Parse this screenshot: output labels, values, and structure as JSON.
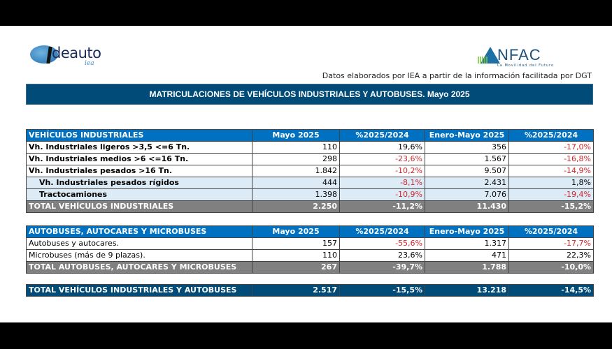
{
  "logos": {
    "left": {
      "name": "Ideauto",
      "word": "deauto",
      "sub": "iea"
    },
    "right": {
      "name": "ANFAC",
      "word": "NFAC",
      "tagline": "La Movilidad del Futuro"
    }
  },
  "source_note": "Datos elaborados por IEA a partir de la información facilitada por DGT",
  "title": "MATRICULACIONES DE VEHÍCULOS INDUSTRIALES Y AUTOBUSES.  Mayo 2025",
  "colors": {
    "banner": "#004b78",
    "header": "#0070c0",
    "total": "#808080",
    "subrow": "#ddebf7",
    "negative": "#d0262b"
  },
  "industrial": {
    "header": [
      "VEHÍCULOS INDUSTRIALES",
      "Mayo 2025",
      "%2025/2024",
      "Enero-Mayo 2025",
      "%2025/2024"
    ],
    "rows": [
      {
        "label": "Vh. Industriales ligeros >3,5 <=6 Tn.",
        "may": "110",
        "may_pct": "19,6%",
        "ytd": "356",
        "ytd_pct": "-17,0%"
      },
      {
        "label": "Vh. Industriales medios >6  <=16 Tn.",
        "may": "298",
        "may_pct": "-23,6%",
        "ytd": "1.567",
        "ytd_pct": "-16,8%"
      },
      {
        "label": "Vh. Industriales  pesados >16 Tn.",
        "may": "1.842",
        "may_pct": "-10,2%",
        "ytd": "9.507",
        "ytd_pct": "-14,9%"
      },
      {
        "label": "Vh. Industriales pesados rígidos",
        "may": "444",
        "may_pct": "-8,1%",
        "ytd": "2.431",
        "ytd_pct": "1,8%"
      },
      {
        "label": "Tractocamiones",
        "may": "1.398",
        "may_pct": "-10,9%",
        "ytd": "7.076",
        "ytd_pct": "-19,4%"
      }
    ],
    "total": {
      "label": "TOTAL VEHÍCULOS INDUSTRIALES",
      "may": "2.250",
      "may_pct": "-11,2%",
      "ytd": "11.430",
      "ytd_pct": "-15,2%"
    }
  },
  "buses": {
    "header": [
      "AUTOBUSES, AUTOCARES Y MICROBUSES",
      "Mayo 2025",
      "%2025/2024",
      "Enero-Mayo 2025",
      "%2025/2024"
    ],
    "rows": [
      {
        "label": "Autobuses y autocares.",
        "may": "157",
        "may_pct": "-55,6%",
        "ytd": "1.317",
        "ytd_pct": "-17,7%"
      },
      {
        "label": "Microbuses (más de 9 plazas).",
        "may": "110",
        "may_pct": "23,6%",
        "ytd": "471",
        "ytd_pct": "22,3%"
      }
    ],
    "total": {
      "label": "TOTAL AUTOBUSES, AUTOCARES Y MICROBUSES",
      "may": "267",
      "may_pct": "-39,7%",
      "ytd": "1.788",
      "ytd_pct": "-10,0%"
    }
  },
  "grand_total": {
    "label": "TOTAL VEHÍCULOS INDUSTRIALES Y AUTOBUSES",
    "may": "2.517",
    "may_pct": "-15,5%",
    "ytd": "13.218",
    "ytd_pct": "-14,5%"
  }
}
